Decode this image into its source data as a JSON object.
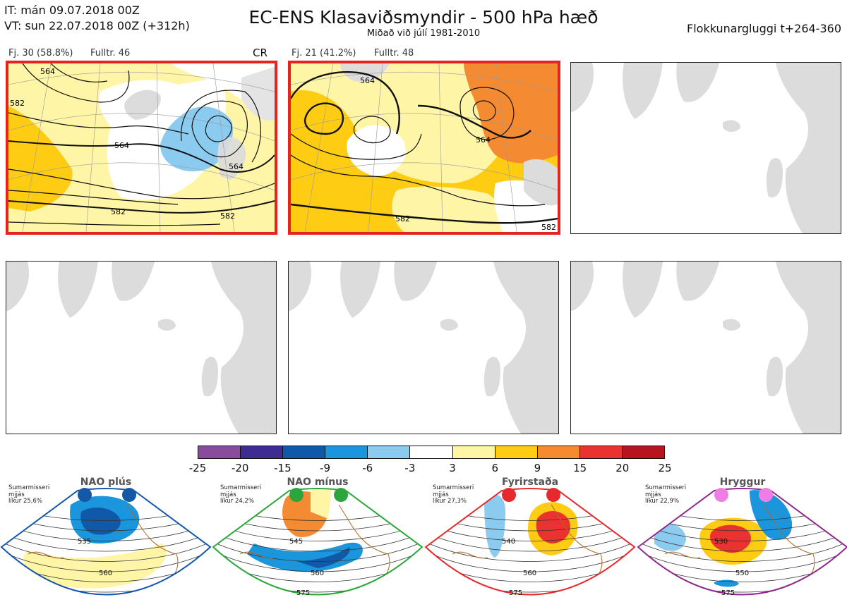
{
  "header": {
    "it_line": "IT: mán 09.07.2018 00Z",
    "vt_line": "VT: sun 22.07.2018 00Z  (+312h)",
    "title": "EC-ENS Klasaviðsmyndir - 500 hPa hæð",
    "subtitle": "Miðað við júlí 1981-2010",
    "window": "Flokkunargluggi t+264-360"
  },
  "clusters": [
    {
      "label": "Fj. 30 (58.8%)",
      "fulltr": "Fulltr. 46",
      "regime": "CR",
      "contours": [
        "564",
        "582",
        "564",
        "582",
        "564",
        "582"
      ]
    },
    {
      "label": "Fj. 21 (41.2%)",
      "fulltr": "Fulltr. 48",
      "contours": [
        "564",
        "564",
        "582",
        "582"
      ]
    }
  ],
  "colorbar": {
    "ticks": [
      "-25",
      "-20",
      "-15",
      "-9",
      "-6",
      "-3",
      "3",
      "6",
      "9",
      "15",
      "20",
      "25"
    ],
    "colors": [
      "#8b4b9c",
      "#3f2c91",
      "#1059a8",
      "#1b95db",
      "#8ccbf0",
      "#ffffff",
      "#fff5a6",
      "#ffcc14",
      "#f48b32",
      "#ea3331",
      "#b7141d"
    ]
  },
  "regimes": [
    {
      "title": "NAO plús",
      "season": "Sumarmisseri",
      "mean": "mjjás",
      "prob": "líkur 25,6%",
      "color": "#1359a8",
      "dot": "#1359a8",
      "contours": [
        "535",
        "560"
      ]
    },
    {
      "title": "NAO mínus",
      "season": "Sumarmisseri",
      "mean": "mjjás",
      "prob": "líkur 24,2%",
      "color": "#2aa63a",
      "dot": "#2aa63a",
      "contours": [
        "545",
        "560",
        "575"
      ]
    },
    {
      "title": "Fyrirstaða",
      "season": "Sumarmisseri",
      "mean": "mjjás",
      "prob": "líkur 27,3%",
      "color": "#e8292b",
      "dot": "#e8292b",
      "contours": [
        "540",
        "560",
        "575"
      ]
    },
    {
      "title": "Hryggur",
      "season": "Sumarmisseri",
      "mean": "mjjás",
      "prob": "líkur 22,9%",
      "color": "#8e2a8c",
      "dot": "#ee7ee6",
      "contours": [
        "530",
        "550",
        "575"
      ]
    }
  ]
}
